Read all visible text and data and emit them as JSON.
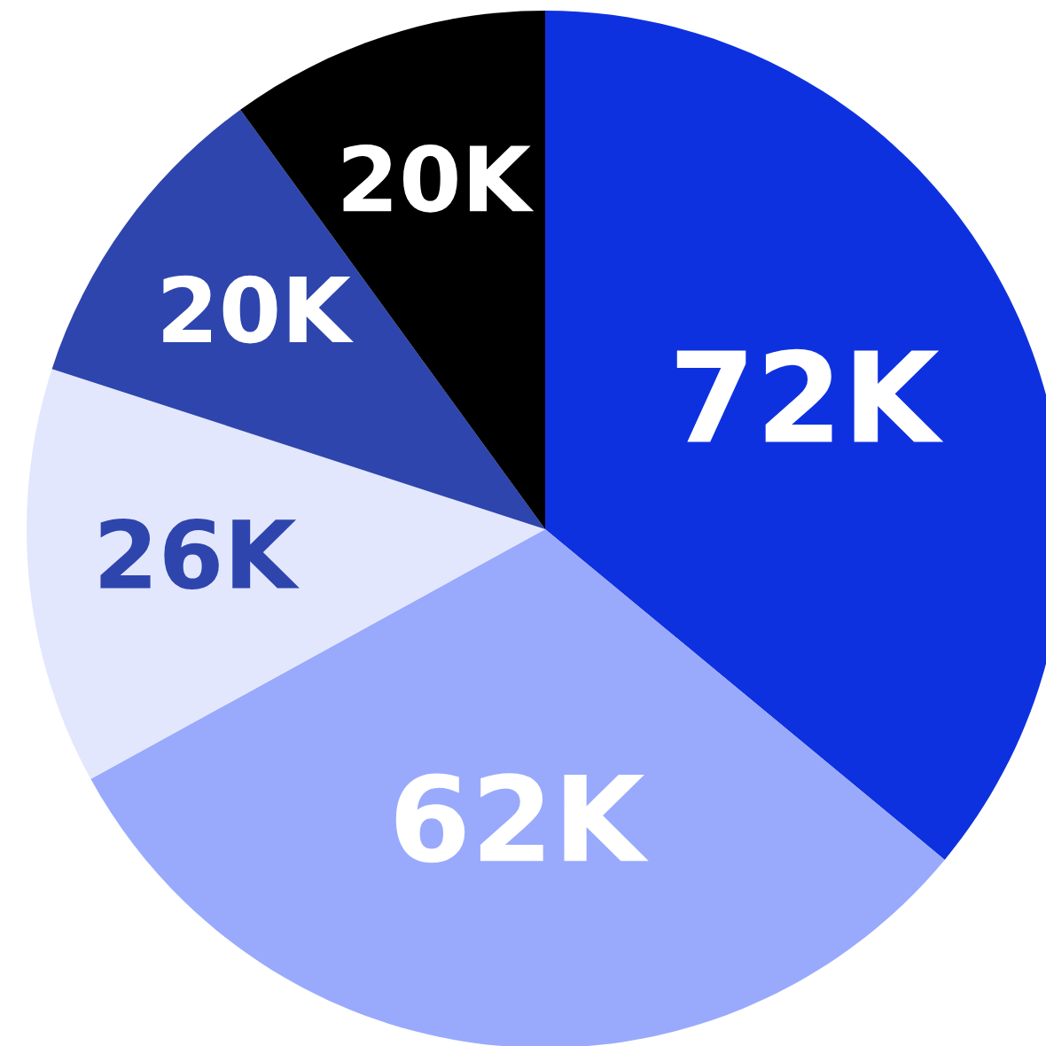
{
  "chart_data": {
    "type": "pie",
    "categories": [
      null,
      null,
      null,
      null,
      null
    ],
    "values": [
      72000,
      62000,
      26000,
      20000,
      20000
    ],
    "value_labels": [
      "72K",
      "62K",
      "26K",
      "20K",
      "20K"
    ],
    "colors": [
      "#0e31e0",
      "#99aafd",
      "#e2e7fd",
      "#2e45ad",
      "#000000"
    ]
  }
}
